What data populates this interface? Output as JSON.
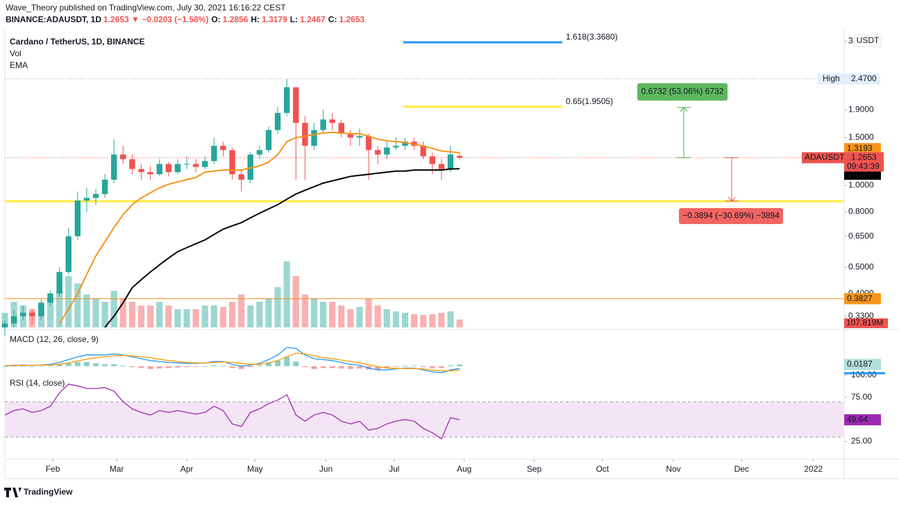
{
  "header": {
    "published": "Wave_Theory published on TradingView.com, July 30, 2021 16:16:22 CEST",
    "quote_parts": [
      {
        "text": "BINANCE:ADAUSDT, 1D",
        "color": "#131722"
      },
      {
        "text": "1.2653 ▼ −0.0203 (−1.58%)",
        "color": "#ef5350"
      },
      {
        "text": "O:",
        "color": "#131722"
      },
      {
        "text": "1.2856",
        "color": "#ef5350"
      },
      {
        "text": "H:",
        "color": "#131722"
      },
      {
        "text": "1.3179",
        "color": "#ef5350"
      },
      {
        "text": "L:",
        "color": "#131722"
      },
      {
        "text": "1.2467",
        "color": "#ef5350"
      },
      {
        "text": "C:",
        "color": "#131722"
      },
      {
        "text": "1.2653",
        "color": "#ef5350"
      }
    ],
    "currency": "USDT"
  },
  "footer": {
    "logo": "TradingView"
  },
  "chart_data": [
    {
      "type": "candlestick",
      "title": "Cardano / TetherUS, 1D, BINANCE",
      "legend": [
        "Vol",
        "EMA"
      ],
      "log_scale": true,
      "up_color": "#26a69a",
      "down_color": "#ef5350",
      "xlim": [
        0,
        92.2
      ],
      "xticks": [
        {
          "value": 5.27,
          "label": "Feb"
        },
        {
          "value": 12.3,
          "label": "Mar"
        },
        {
          "value": 20.0,
          "label": "Apr"
        },
        {
          "value": 27.5,
          "label": "May"
        },
        {
          "value": 35.3,
          "label": "Jun"
        },
        {
          "value": 42.8,
          "label": "Jul"
        },
        {
          "value": 50.5,
          "label": "Aug"
        },
        {
          "value": 58.2,
          "label": "Sep"
        },
        {
          "value": 65.7,
          "label": "Oct"
        },
        {
          "value": 73.5,
          "label": "Nov"
        },
        {
          "value": 81.0,
          "label": "Dec"
        },
        {
          "value": 88.9,
          "label": "2022"
        }
      ],
      "ylim": [
        0.3,
        3.7
      ],
      "yticks": [
        {
          "value": 3.4,
          "label": "3"
        },
        {
          "value": 1.9,
          "label": "1.9000"
        },
        {
          "value": 1.5,
          "label": "1.5000"
        },
        {
          "value": 1,
          "label": "1.0000"
        },
        {
          "value": 0.8,
          "label": "0.8000"
        },
        {
          "value": 0.65,
          "label": "0.6500"
        },
        {
          "value": 0.5,
          "label": "0.5000"
        },
        {
          "value": 0.4,
          "label": "0.4000"
        },
        {
          "value": 0.33,
          "label": "0.3300"
        }
      ],
      "open": [
        0.3,
        0.31,
        0.33,
        0.34,
        0.33,
        0.37,
        0.4,
        0.48,
        0.65,
        0.88,
        0.9,
        0.93,
        1.05,
        1.3,
        1.25,
        1.15,
        1.12,
        1.1,
        1.2,
        1.12,
        1.2,
        1.2,
        1.17,
        1.23,
        1.4,
        1.35,
        1.1,
        1.05,
        1.3,
        1.35,
        1.6,
        1.85,
        2.3,
        1.7,
        1.4,
        1.6,
        1.75,
        1.7,
        1.55,
        1.5,
        1.52,
        1.35,
        1.3,
        1.38,
        1.4,
        1.45,
        1.4,
        1.28,
        1.2,
        1.15,
        1.2856
      ],
      "high": [
        0.32,
        0.35,
        0.36,
        0.35,
        0.38,
        0.41,
        0.5,
        0.7,
        0.95,
        0.98,
        0.97,
        1.1,
        1.48,
        1.4,
        1.3,
        1.2,
        1.18,
        1.25,
        1.22,
        1.25,
        1.28,
        1.25,
        1.28,
        1.5,
        1.45,
        1.38,
        1.15,
        1.33,
        1.4,
        1.65,
        1.95,
        2.47,
        2.3,
        1.8,
        1.7,
        1.9,
        1.85,
        1.75,
        1.6,
        1.62,
        1.55,
        1.4,
        1.45,
        1.5,
        1.5,
        1.5,
        1.45,
        1.32,
        1.25,
        1.4,
        1.3179
      ],
      "low": [
        0.28,
        0.3,
        0.32,
        0.31,
        0.32,
        0.36,
        0.39,
        0.47,
        0.63,
        0.8,
        0.85,
        0.9,
        1.02,
        1.2,
        1.1,
        1.05,
        1.05,
        1.08,
        1.08,
        1.1,
        1.15,
        1.12,
        1.15,
        1.2,
        1.28,
        1.05,
        0.95,
        1.02,
        1.25,
        1.32,
        1.55,
        1.8,
        1.05,
        1.05,
        1.35,
        1.55,
        1.6,
        1.5,
        1.4,
        1.4,
        1.05,
        1.2,
        1.25,
        1.35,
        1.35,
        1.35,
        1.25,
        1.1,
        1.05,
        1.12,
        1.2467
      ],
      "close": [
        0.31,
        0.33,
        0.34,
        0.33,
        0.37,
        0.4,
        0.48,
        0.65,
        0.88,
        0.9,
        0.93,
        1.05,
        1.3,
        1.25,
        1.15,
        1.12,
        1.1,
        1.2,
        1.12,
        1.2,
        1.2,
        1.17,
        1.23,
        1.4,
        1.35,
        1.1,
        1.05,
        1.3,
        1.35,
        1.6,
        1.85,
        2.3,
        1.7,
        1.4,
        1.6,
        1.75,
        1.7,
        1.55,
        1.5,
        1.52,
        1.35,
        1.3,
        1.38,
        1.4,
        1.45,
        1.4,
        1.28,
        1.2,
        1.15,
        1.3,
        1.2653
      ],
      "volume": [
        200,
        350,
        300,
        250,
        300,
        400,
        500,
        700,
        600,
        450,
        400,
        350,
        500,
        400,
        350,
        300,
        300,
        350,
        300,
        250,
        250,
        250,
        300,
        300,
        280,
        350,
        450,
        300,
        350,
        400,
        550,
        900,
        700,
        450,
        400,
        350,
        350,
        300,
        250,
        280,
        400,
        300,
        250,
        220,
        200,
        180,
        170,
        180,
        200,
        220,
        107.819
      ],
      "volume_last_label": "107.819M",
      "series": [
        {
          "color": "#f7931a",
          "values": [
            null,
            null,
            null,
            null,
            null,
            null,
            0.31,
            0.35,
            0.4,
            0.47,
            0.55,
            0.62,
            0.7,
            0.78,
            0.85,
            0.9,
            0.94,
            0.98,
            1.01,
            1.03,
            1.05,
            1.07,
            1.12,
            1.13,
            1.14,
            1.14,
            1.14,
            1.16,
            1.18,
            1.22,
            1.3,
            1.45,
            1.5,
            1.52,
            1.54,
            1.56,
            1.57,
            1.56,
            1.55,
            1.55,
            1.52,
            1.48,
            1.46,
            1.45,
            1.44,
            1.42,
            1.4,
            1.37,
            1.34,
            1.33,
            1.3193
          ]
        },
        {
          "color": "#000000",
          "values": [
            null,
            null,
            null,
            null,
            null,
            null,
            null,
            null,
            null,
            null,
            null,
            0.3,
            0.33,
            0.37,
            0.42,
            0.45,
            0.48,
            0.51,
            0.54,
            0.57,
            0.59,
            0.61,
            0.63,
            0.66,
            0.69,
            0.71,
            0.73,
            0.76,
            0.79,
            0.82,
            0.85,
            0.89,
            0.93,
            0.96,
            0.99,
            1.02,
            1.04,
            1.06,
            1.08,
            1.09,
            1.1,
            1.11,
            1.12,
            1.13,
            1.13,
            1.14,
            1.14,
            1.14,
            1.14,
            1.15,
            1.1527
          ]
        }
      ],
      "symbol_label": "ADAUSDT",
      "countdown": "09:43:39",
      "high_marker": {
        "text": "High",
        "value": 2.47,
        "label": "2.4700"
      },
      "levels": [
        {
          "label": "1.618(3.3680)",
          "value": 3.368,
          "color": "#2196f3"
        },
        {
          "label": "0.65(1.9505)",
          "value": 1.9505,
          "color": "#ffeb3b"
        },
        {
          "value": 0.875,
          "color": "#ffeb3b"
        },
        {
          "value": 0.3827,
          "color": "#f7931a"
        }
      ],
      "measures": [
        {
          "label": "0.6732 (53.06%) 6732",
          "from": 1.2653,
          "to": 1.9385,
          "color": "#4caf50"
        },
        {
          "label": "−0.3894 (−30.69%) −3894",
          "from": 1.2653,
          "to": 0.8759,
          "color": "#ef5350"
        }
      ]
    },
    {
      "type": "line",
      "title": "MACD (12, 26, close, 9)",
      "ylim": [
        -0.09,
        0.37
      ],
      "series": [
        {
          "color": "#2196f3",
          "values": [
            0.005,
            0.01,
            0.012,
            0.01,
            0.012,
            0.02,
            0.04,
            0.07,
            0.1,
            0.12,
            0.12,
            0.12,
            0.13,
            0.12,
            0.1,
            0.08,
            0.06,
            0.05,
            0.04,
            0.035,
            0.03,
            0.03,
            0.035,
            0.05,
            0.05,
            0.02,
            0.0,
            0.01,
            0.03,
            0.07,
            0.12,
            0.2,
            0.19,
            0.12,
            0.08,
            0.07,
            0.06,
            0.04,
            0.02,
            0.01,
            -0.02,
            -0.04,
            -0.04,
            -0.03,
            -0.02,
            -0.02,
            -0.04,
            -0.06,
            -0.07,
            -0.04,
            -0.025
          ]
        },
        {
          "color": "#ff9800",
          "values": [
            0.005,
            0.007,
            0.009,
            0.01,
            0.011,
            0.013,
            0.02,
            0.035,
            0.055,
            0.075,
            0.09,
            0.1,
            0.11,
            0.115,
            0.11,
            0.1,
            0.09,
            0.075,
            0.06,
            0.05,
            0.04,
            0.035,
            0.035,
            0.04,
            0.045,
            0.04,
            0.03,
            0.02,
            0.02,
            0.035,
            0.06,
            0.1,
            0.14,
            0.13,
            0.11,
            0.09,
            0.08,
            0.065,
            0.05,
            0.035,
            0.015,
            -0.005,
            -0.02,
            -0.025,
            -0.025,
            -0.025,
            -0.03,
            -0.04,
            -0.05,
            -0.05,
            -0.044
          ]
        }
      ],
      "histogram": [
        0,
        0.003,
        0.003,
        0,
        0.001,
        0.007,
        0.02,
        0.035,
        0.045,
        0.045,
        0.03,
        0.02,
        0.02,
        0.005,
        -0.01,
        -0.02,
        -0.03,
        -0.025,
        -0.02,
        -0.015,
        -0.01,
        -0.005,
        0,
        0.01,
        0.005,
        -0.02,
        -0.03,
        -0.01,
        0.01,
        0.035,
        0.06,
        0.1,
        0.05,
        -0.01,
        -0.03,
        -0.02,
        -0.02,
        -0.025,
        -0.03,
        -0.025,
        -0.035,
        -0.035,
        -0.02,
        -0.005,
        0.005,
        0.005,
        -0.01,
        -0.02,
        -0.02,
        0.01,
        0.0187
      ],
      "histogram_colors": [
        "#26a69a",
        "#ef5350"
      ]
    },
    {
      "type": "line",
      "title": "RSI (14, close)",
      "ylim": [
        5,
        100
      ],
      "yticks": [
        {
          "value": 100,
          "label": "100.00"
        },
        {
          "value": 75,
          "label": "75.00"
        },
        {
          "value": 25,
          "label": "25.00"
        }
      ],
      "band": [
        30,
        70
      ],
      "band_color": "#f3e5f5",
      "series": [
        {
          "color": "#9c27b0",
          "values": [
            55,
            60,
            62,
            58,
            60,
            65,
            80,
            90,
            88,
            85,
            85,
            86,
            82,
            70,
            62,
            58,
            55,
            60,
            58,
            60,
            58,
            56,
            58,
            65,
            60,
            45,
            42,
            58,
            62,
            68,
            72,
            78,
            55,
            48,
            55,
            58,
            55,
            48,
            45,
            48,
            38,
            40,
            45,
            48,
            50,
            48,
            40,
            35,
            28,
            52,
            49.64
          ]
        }
      ]
    }
  ]
}
